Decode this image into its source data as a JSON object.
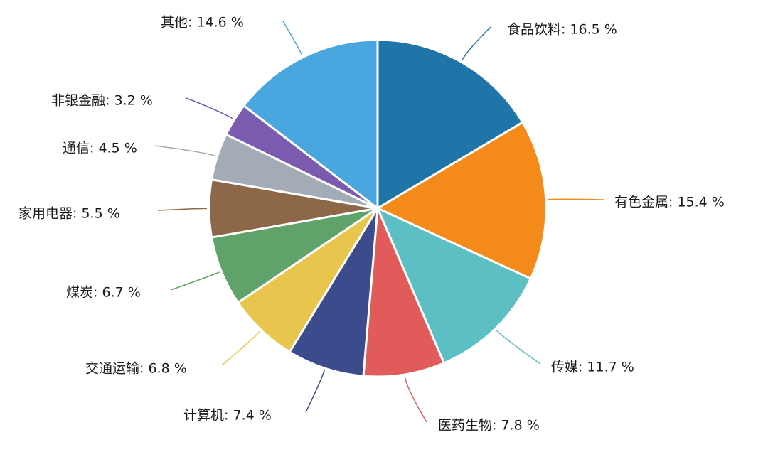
{
  "chart_data": {
    "type": "pie",
    "title": "",
    "label_format": "{name}: {value} %",
    "slices": [
      {
        "name": "食品饮料",
        "value": 16.5,
        "color": "#1f75a8"
      },
      {
        "name": "有色金属",
        "value": 15.4,
        "color": "#f48a1a"
      },
      {
        "name": "传媒",
        "value": 11.7,
        "color": "#5bbfc4"
      },
      {
        "name": "医药生物",
        "value": 7.8,
        "color": "#e15b5b"
      },
      {
        "name": "计算机",
        "value": 7.4,
        "color": "#3c4b8c"
      },
      {
        "name": "交通运输",
        "value": 6.8,
        "color": "#e8c64e"
      },
      {
        "name": "煤炭",
        "value": 6.7,
        "color": "#5fa36a"
      },
      {
        "name": "家用电器",
        "value": 5.5,
        "color": "#8c6748"
      },
      {
        "name": "通信",
        "value": 4.5,
        "color": "#a3acb6"
      },
      {
        "name": "非银金融",
        "value": 3.2,
        "color": "#7a5bb0"
      },
      {
        "name": "其他",
        "value": 14.6,
        "color": "#4aa6de"
      }
    ],
    "start_angle": "12 o'clock",
    "direction": "clockwise",
    "legend": "none"
  }
}
